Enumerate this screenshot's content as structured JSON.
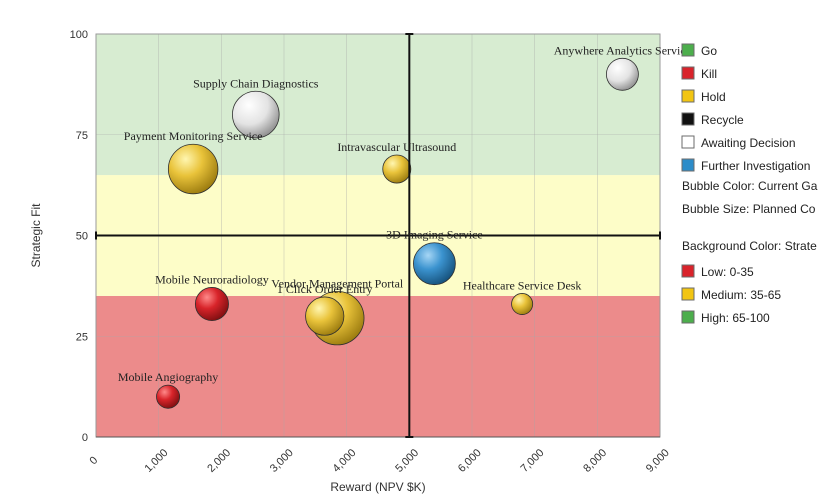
{
  "chart_data": {
    "type": "scatter",
    "xlabel": "Reward (NPV $K)",
    "ylabel": "Strategic Fit",
    "xlim": [
      0,
      9000
    ],
    "ylim": [
      0,
      100
    ],
    "x_ticks": [
      0,
      1000,
      2000,
      3000,
      4000,
      5000,
      6000,
      7000,
      8000,
      9000
    ],
    "x_tick_labels": [
      "0",
      "1,000",
      "2,000",
      "3,000",
      "4,000",
      "5,000",
      "6,000",
      "7,000",
      "8,000",
      "9,000"
    ],
    "y_ticks": [
      0,
      25,
      50,
      75,
      100
    ],
    "y_tick_labels": [
      "0",
      "25",
      "50",
      "75",
      "100"
    ],
    "grid": true,
    "quadrant_lines": {
      "x": 5000,
      "y": 50
    },
    "background_bands": [
      {
        "from": 0,
        "to": 35,
        "color": "#ec8b8b"
      },
      {
        "from": 35,
        "to": 65,
        "color": "#fdfdc8"
      },
      {
        "from": 65,
        "to": 100,
        "color": "#d7ecd1"
      }
    ],
    "series": [
      {
        "label": "Anywhere Analytics Service",
        "x": 8400,
        "y": 90,
        "size": 1.0,
        "status": "Awaiting Decision"
      },
      {
        "label": "Supply Chain Diagnostics",
        "x": 2550,
        "y": 80,
        "size": 2.6,
        "status": "Awaiting Decision"
      },
      {
        "label": "Payment Monitoring Service",
        "x": 1550,
        "y": 66.5,
        "size": 3.0,
        "status": "Hold"
      },
      {
        "label": "Intravascular Ultrasound",
        "x": 4800,
        "y": 66.5,
        "size": 0.7,
        "status": "Hold"
      },
      {
        "label": "3D Imaging Service",
        "x": 5400,
        "y": 43,
        "size": 2.0,
        "status": "Further Investigation"
      },
      {
        "label": "Healthcare Service Desk",
        "x": 6800,
        "y": 33,
        "size": 0.3,
        "status": "Hold"
      },
      {
        "label": "Mobile Neuroradiology",
        "x": 1850,
        "y": 33,
        "size": 1.1,
        "status": "Kill"
      },
      {
        "label": "Vendor Management Portal",
        "x": 3850,
        "y": 29.5,
        "size": 3.6,
        "status": "Hold"
      },
      {
        "label": "1 Click Order Entry",
        "x": 3650,
        "y": 30,
        "size": 1.6,
        "status": "Hold"
      },
      {
        "label": "Mobile Angiography",
        "x": 1150,
        "y": 10,
        "size": 0.4,
        "status": "Kill"
      }
    ]
  },
  "legend": {
    "status_items": [
      {
        "label": "Go",
        "color": "#4cae4c"
      },
      {
        "label": "Kill",
        "color": "#d9232b"
      },
      {
        "label": "Hold",
        "color": "#f2c512"
      },
      {
        "label": "Recycle",
        "color": "#111111"
      },
      {
        "label": "Awaiting Decision",
        "color": "#ffffff"
      },
      {
        "label": "Further Investigation",
        "color": "#2c8cc9"
      }
    ],
    "bubble_color_note": "Bubble Color: Current Ga",
    "bubble_size_note": "Bubble Size: Planned Co",
    "background_title": "Background Color: Strate",
    "background_items": [
      {
        "label": "Low: 0-35",
        "color": "#d9232b"
      },
      {
        "label": "Medium: 35-65",
        "color": "#f2c512"
      },
      {
        "label": "High: 65-100",
        "color": "#4cae4c"
      }
    ]
  }
}
